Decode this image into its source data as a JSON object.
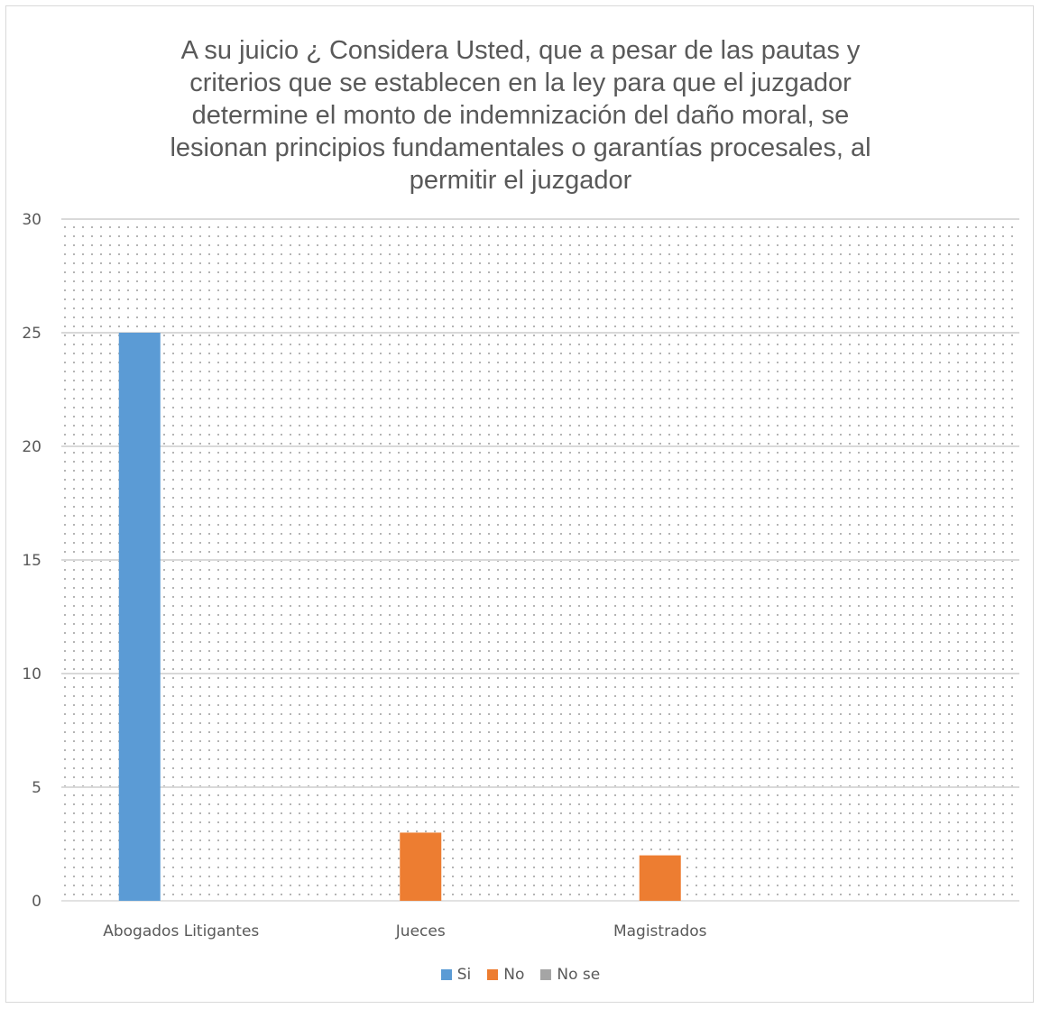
{
  "chart_data": {
    "type": "bar",
    "title_lines": [
      "A su juicio ¿ Considera Usted, que a pesar de las pautas y",
      "criterios que se establecen en la ley para que el juzgador",
      "determine el monto  de indemnización del daño moral, se",
      "lesionan principios fundamentales o garantías procesales, al",
      "permitir el juzgador"
    ],
    "categories": [
      "Abogados Litigantes",
      "Jueces",
      "Magistrados",
      ""
    ],
    "series": [
      {
        "name": "Si",
        "color": "#5b9bd5",
        "values": [
          25,
          0,
          0,
          0
        ]
      },
      {
        "name": "No",
        "color": "#ed7d31",
        "values": [
          0,
          3,
          2,
          0
        ]
      },
      {
        "name": "No se",
        "color": "#a5a5a5",
        "values": [
          0,
          0,
          0,
          0
        ]
      }
    ],
    "ylim": [
      0,
      30
    ],
    "yticks": [
      0,
      5,
      10,
      15,
      20,
      25,
      30
    ],
    "grid": true,
    "plot_pattern": "dotted",
    "legend_position": "bottom"
  }
}
